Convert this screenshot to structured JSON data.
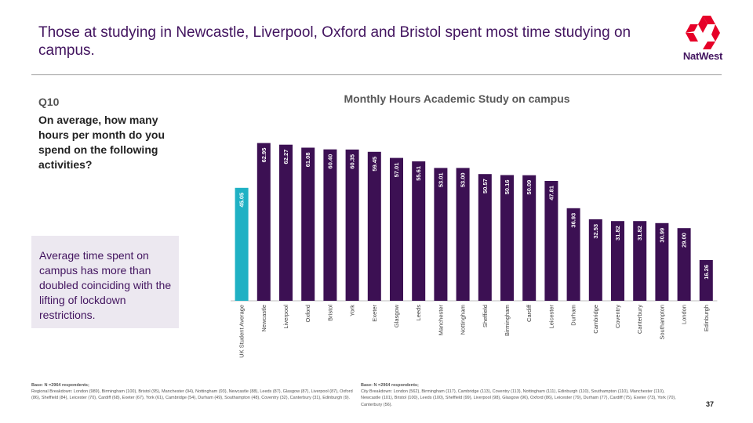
{
  "slide": {
    "title": "Those at studying in Newcastle, Liverpool, Oxford and Bristol spent most time studying on campus.",
    "brand": "NatWest",
    "question_number": "Q10",
    "question_text": "On average, how many hours per month do you spend on the following activities?",
    "callout": "Average time spent on campus has more than doubled coinciding with the lifting of lockdown restrictions.",
    "base_left_title": "Base: N =2964 respondents;",
    "base_left_text": "Regional Breakdown: London (989), Birmingham (100), Bristol (95), Manchester (94), Nottingham (93), Newcastle (88), Leeds (87), Glasgow (87), Liverpool (87), Oxford (86), Sheffield (84), Leicester (70), Cardiff (68), Exeter (67), York (61), Cambridge (54), Durham (49), Southampton (48), Coventry (32), Canterbury (31), Edinburgh (9).",
    "base_right_title": "Base: N =2964 respondents;",
    "base_right_text": "City Breakdown: London (562), Birmingham (117), Cambridge (113), Coventry (113), Nottingham (111), Edinburgh (110), Southampton (110), Manchester (110), Newcastle (101), Bristol (100), Leeds (100), Sheffield (99), Liverpool (98), Glasgow (96), Oxford (86), Leicester (79), Durham (77), Cardiff (75), Exeter (73), York (70), Canterbury (56).",
    "page_number": "37"
  },
  "colors": {
    "brand_purple": "#42145f",
    "bar_purple": "#3c1053",
    "highlight_teal": "#1fb1c4",
    "logo_red": "#e60028"
  },
  "chart_data": {
    "type": "bar",
    "title": "Monthly Hours Academic Study on campus",
    "xlabel": "",
    "ylabel": "",
    "ylim": [
      0,
      70
    ],
    "grid": false,
    "categories": [
      "UK Student Average",
      "Newcastle",
      "Liverpool",
      "Oxford",
      "Bristol",
      "York",
      "Exeter",
      "Glasgow",
      "Leeds",
      "Manchester",
      "Nottingham",
      "Sheffield",
      "Birmingham",
      "Cardiff",
      "Leicester",
      "Durham",
      "Cambridge",
      "Coventry",
      "Canterbury",
      "Southampton",
      "London",
      "Edinburgh"
    ],
    "values": [
      45.05,
      62.95,
      62.27,
      61.08,
      60.4,
      60.35,
      59.45,
      57.01,
      55.61,
      53.01,
      53.0,
      50.57,
      50.16,
      50.09,
      47.81,
      36.93,
      32.53,
      31.82,
      31.82,
      30.99,
      29.0,
      16.26
    ],
    "value_labels": [
      "45.05",
      "62.95",
      "62.27",
      "61.08",
      "60.40",
      "60.35",
      "59.45",
      "57.01",
      "55.61",
      "53.01",
      "53.00",
      "50.57",
      "50.16",
      "50.09",
      "47.81",
      "36.93",
      "32.53",
      "31.82",
      "31.82",
      "30.99",
      "29.00",
      "16.26"
    ],
    "highlight_index": 0
  }
}
